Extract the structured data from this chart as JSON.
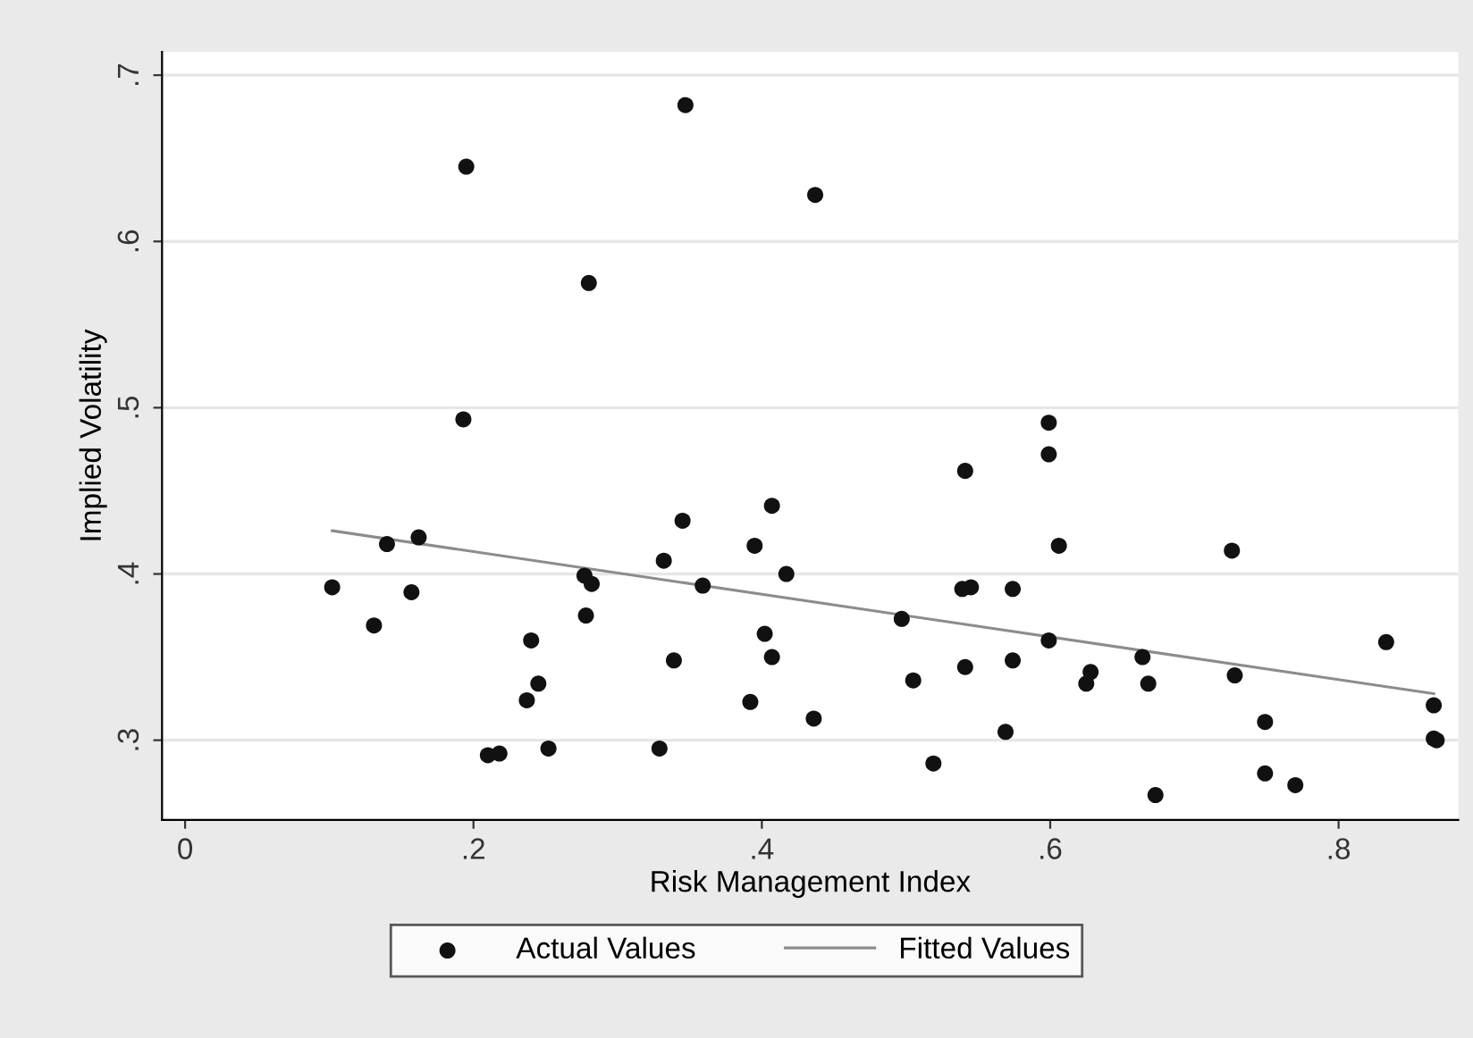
{
  "chart_data": {
    "type": "scatter",
    "xlabel": "Risk Management Index",
    "ylabel": "Implied Volatility",
    "xlim": [
      -0.016,
      0.883
    ],
    "ylim": [
      0.252,
      0.714
    ],
    "xticks": [
      0,
      {
        "value": 0.2,
        "label": ".2"
      },
      {
        "value": 0.4,
        "label": ".4"
      },
      {
        "value": 0.6,
        "label": ".6"
      },
      {
        "value": 0.8,
        "label": ".8"
      }
    ],
    "yticks": [
      {
        "value": 0.3,
        "label": ".3"
      },
      {
        "value": 0.4,
        "label": ".4"
      },
      {
        "value": 0.5,
        "label": ".5"
      },
      {
        "value": 0.6,
        "label": ".6"
      },
      {
        "value": 0.7,
        "label": ".7"
      }
    ],
    "grid": "y",
    "legend": "bottom",
    "series": [
      {
        "name": "Actual Values",
        "marker": "circle",
        "color": "#111111",
        "x": [
          0.102,
          0.131,
          0.157,
          0.14,
          0.162,
          0.195,
          0.193,
          0.21,
          0.218,
          0.252,
          0.237,
          0.245,
          0.24,
          0.28,
          0.277,
          0.282,
          0.278,
          0.329,
          0.339,
          0.332,
          0.345,
          0.347,
          0.359,
          0.395,
          0.407,
          0.417,
          0.402,
          0.407,
          0.392,
          0.436,
          0.437,
          0.497,
          0.505,
          0.519,
          0.541,
          0.539,
          0.545,
          0.541,
          0.574,
          0.574,
          0.569,
          0.599,
          0.599,
          0.606,
          0.599,
          0.625,
          0.628,
          0.664,
          0.668,
          0.673,
          0.726,
          0.728,
          0.749,
          0.749,
          0.77,
          0.833,
          0.866,
          0.866,
          0.868
        ],
        "values": [
          0.392,
          0.369,
          0.389,
          0.418,
          0.422,
          0.645,
          0.493,
          0.291,
          0.292,
          0.295,
          0.324,
          0.334,
          0.36,
          0.575,
          0.399,
          0.394,
          0.375,
          0.295,
          0.348,
          0.408,
          0.432,
          0.682,
          0.393,
          0.417,
          0.441,
          0.4,
          0.364,
          0.35,
          0.323,
          0.313,
          0.628,
          0.373,
          0.336,
          0.286,
          0.462,
          0.391,
          0.392,
          0.344,
          0.391,
          0.348,
          0.305,
          0.491,
          0.472,
          0.417,
          0.36,
          0.334,
          0.341,
          0.35,
          0.334,
          0.267,
          0.414,
          0.339,
          0.311,
          0.28,
          0.273,
          0.359,
          0.321,
          0.301,
          0.3
        ]
      },
      {
        "name": "Fitted Values",
        "type": "line",
        "marker": "none",
        "line_style": "solid",
        "color": "#8c8c8c",
        "x": [
          0.102,
          0.866
        ],
        "values": [
          0.426,
          0.328
        ]
      }
    ]
  }
}
